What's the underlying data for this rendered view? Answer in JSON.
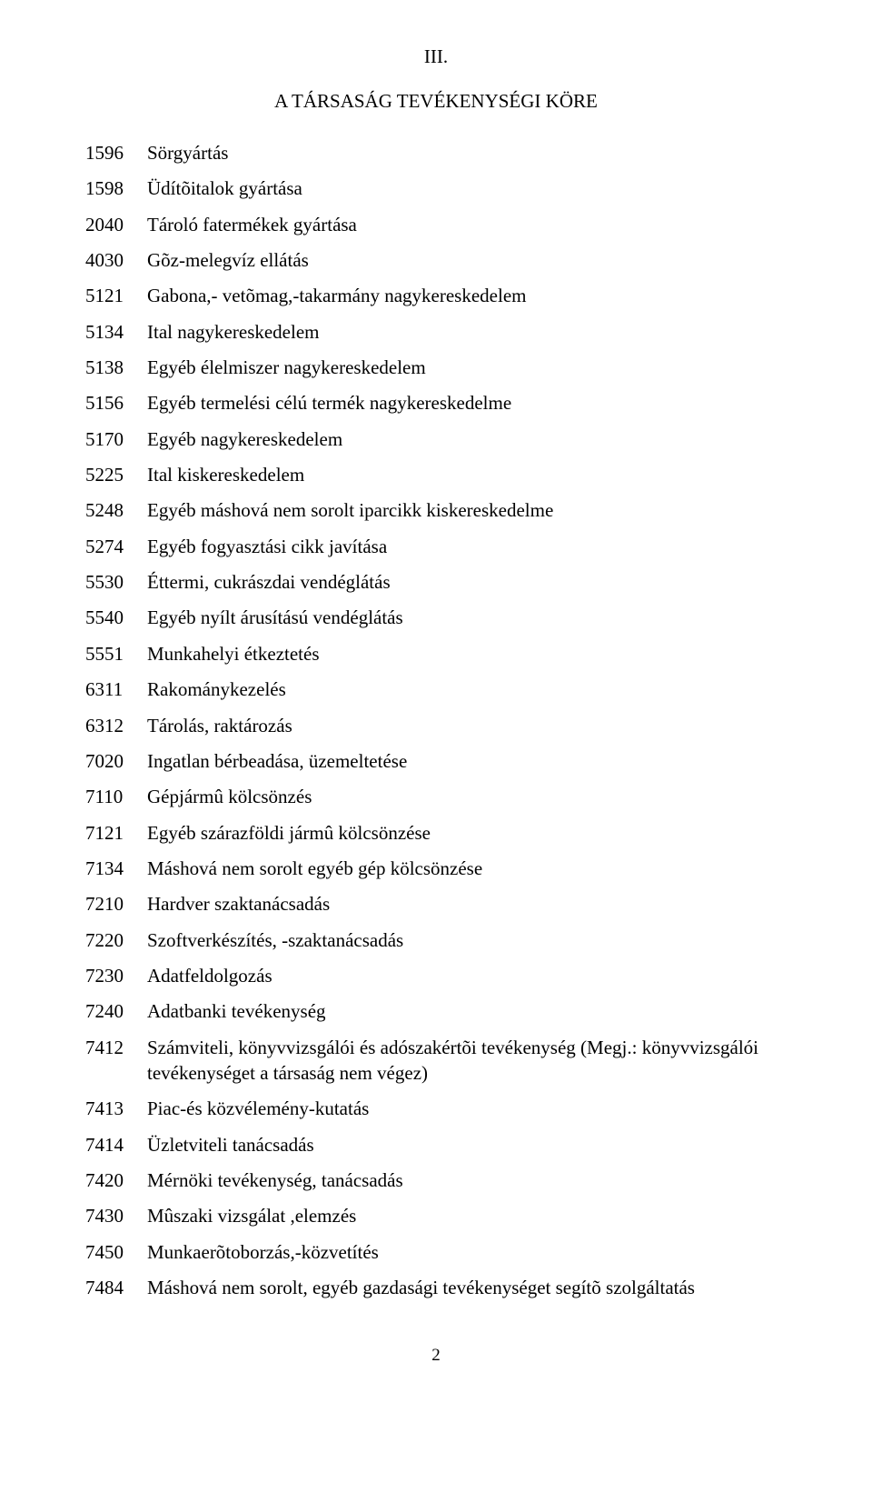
{
  "section_number": "III.",
  "section_title": "A TÁRSASÁG TEVÉKENYSÉGI KÖRE",
  "activities": [
    {
      "code": "1596",
      "desc": "Sörgyártás"
    },
    {
      "code": "1598",
      "desc": "Üdítõitalok gyártása"
    },
    {
      "code": "2040",
      "desc": "Tároló fatermékek gyártása"
    },
    {
      "code": "4030",
      "desc": "Gõz-melegvíz ellátás"
    },
    {
      "code": "5121",
      "desc": "Gabona,- vetõmag,-takarmány nagykereskedelem"
    },
    {
      "code": "5134",
      "desc": "Ital nagykereskedelem"
    },
    {
      "code": "5138",
      "desc": "Egyéb élelmiszer nagykereskedelem"
    },
    {
      "code": "5156",
      "desc": "Egyéb termelési célú termék nagykereskedelme"
    },
    {
      "code": "5170",
      "desc": "Egyéb nagykereskedelem"
    },
    {
      "code": "5225",
      "desc": "Ital kiskereskedelem"
    },
    {
      "code": "5248",
      "desc": "Egyéb máshová nem sorolt iparcikk  kiskereskedelme"
    },
    {
      "code": "5274",
      "desc": "Egyéb fogyasztási cikk javítása"
    },
    {
      "code": "5530",
      "desc": "Éttermi, cukrászdai vendéglátás"
    },
    {
      "code": "5540",
      "desc": "Egyéb nyílt árusítású vendéglátás"
    },
    {
      "code": "5551",
      "desc": "Munkahelyi étkeztetés"
    },
    {
      "code": "6311",
      "desc": "Rakománykezelés"
    },
    {
      "code": "6312",
      "desc": "Tárolás, raktározás"
    },
    {
      "code": "7020",
      "desc": " Ingatlan bérbeadása, üzemeltetése"
    },
    {
      "code": "7110",
      "desc": "Gépjármû kölcsönzés"
    },
    {
      "code": "7121",
      "desc": "Egyéb szárazföldi jármû kölcsönzése"
    },
    {
      "code": "7134",
      "desc": "Máshová nem sorolt egyéb gép kölcsönzése"
    },
    {
      "code": "7210",
      "desc": "Hardver szaktanácsadás"
    },
    {
      "code": "7220",
      "desc": "Szoftverkészítés, -szaktanácsadás"
    },
    {
      "code": "7230",
      "desc": "Adatfeldolgozás"
    },
    {
      "code": "7240",
      "desc": "Adatbanki tevékenység"
    },
    {
      "code": "7412",
      "desc": "Számviteli, könyvvizsgálói és adószakértõi tevékenység (Megj.: könyvvizsgálói tevékenységet a társaság nem végez)"
    },
    {
      "code": "7413",
      "desc": "Piac-és közvélemény-kutatás"
    },
    {
      "code": "7414",
      "desc": "Üzletviteli tanácsadás"
    },
    {
      "code": "7420",
      "desc": "Mérnöki tevékenység, tanácsadás"
    },
    {
      "code": "7430",
      "desc": "Mûszaki vizsgálat ,elemzés"
    },
    {
      "code": "7450",
      "desc": "Munkaerõtoborzás,-közvetítés"
    },
    {
      "code": "7484",
      "desc": "Máshová nem sorolt, egyéb gazdasági tevékenységet  segítõ szolgáltatás"
    }
  ],
  "page_number": "2"
}
